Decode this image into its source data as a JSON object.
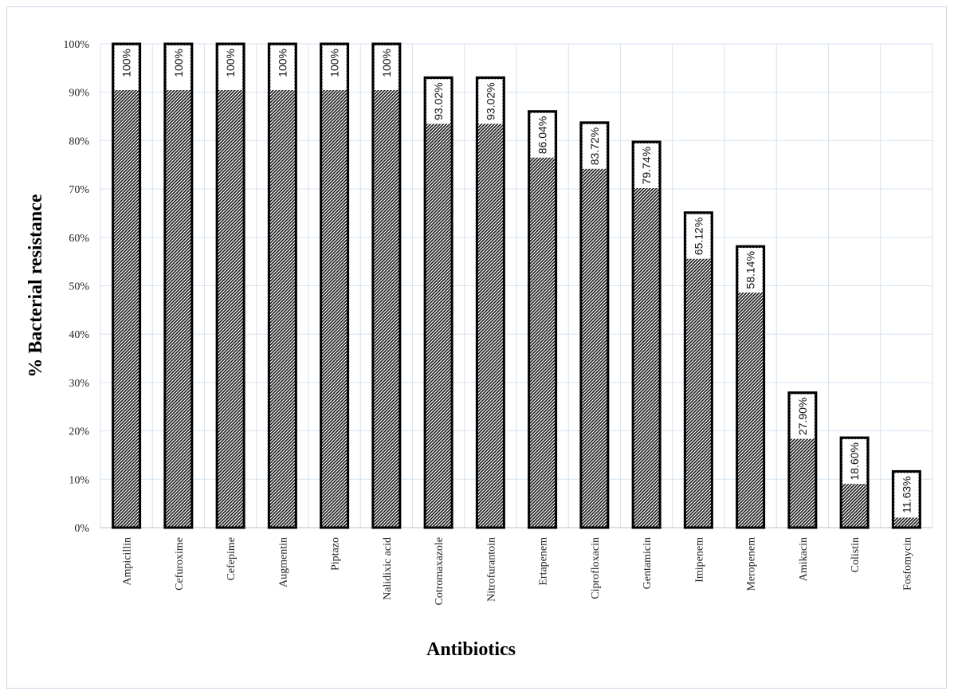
{
  "chart_data": {
    "type": "bar",
    "title": "",
    "xlabel": "Antibiotics",
    "ylabel": "% Bacterial resistance",
    "ylim": [
      0,
      100
    ],
    "yticks": [
      "0%",
      "10%",
      "20%",
      "30%",
      "40%",
      "50%",
      "60%",
      "70%",
      "80%",
      "90%",
      "100%"
    ],
    "grid": true,
    "categories": [
      "Ampicillin",
      "Cefuroxime",
      "Cefepime",
      "Augmentin",
      "Piptazo",
      "Nalidixic acid",
      "Cotromaxazole",
      "Nitrofurantoin",
      "Ertapenem",
      "Ciprofloxacin",
      "Gentamicin",
      "Imipenem",
      "Meropenem",
      "Amikacin",
      "Colistin",
      "Fosfomycin"
    ],
    "values": [
      100,
      100,
      100,
      100,
      100,
      100,
      93.02,
      93.02,
      86.04,
      83.72,
      79.74,
      65.12,
      58.14,
      27.9,
      18.6,
      11.63
    ],
    "data_labels": [
      "100%",
      "100%",
      "100%",
      "100%",
      "100%",
      "100%",
      "93.02%",
      "93.02%",
      "86.04%",
      "83.72%",
      "79.74%",
      "65.12%",
      "58.14%",
      "27.90%",
      "18.60%",
      "11.63%"
    ],
    "colors": {
      "bar_fill": "#2a2a2a",
      "bar_outline": "#000000",
      "grid": "#d6e2f0"
    }
  }
}
